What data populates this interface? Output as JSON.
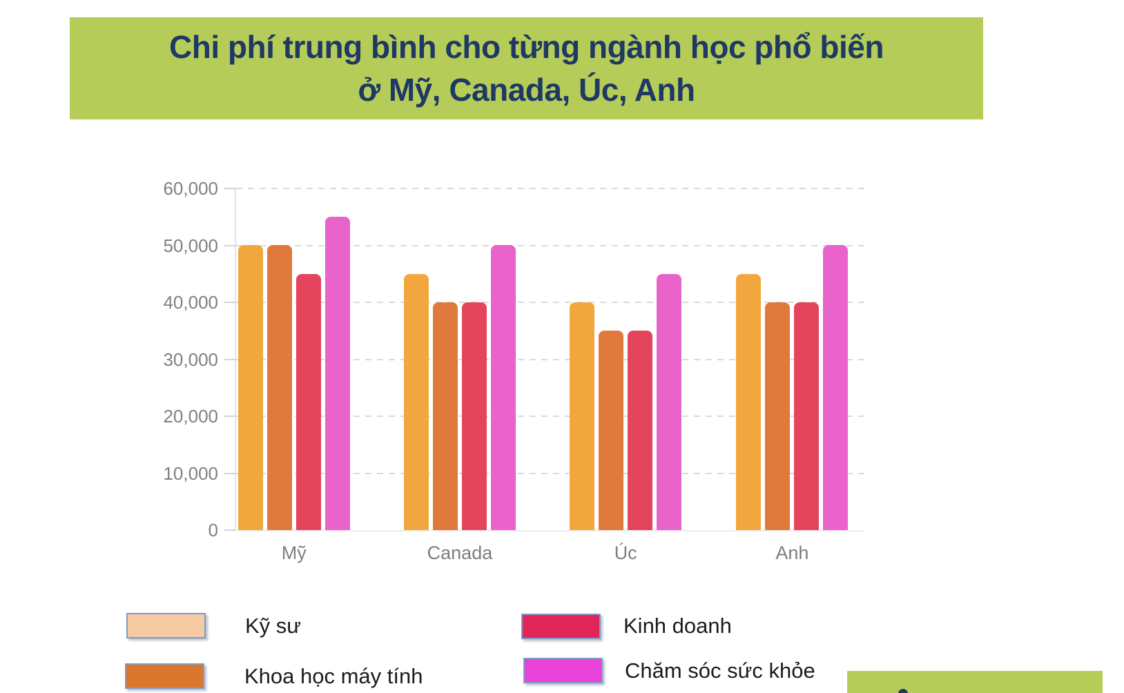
{
  "title_banner": {
    "line1": "Chi phí trung bình cho từng ngành học phổ biến",
    "line2": "ở Mỹ, Canada, Úc, Anh",
    "bg_color": "#b5cd58",
    "text_color": "#1f3864"
  },
  "chart_data": {
    "type": "bar",
    "title": "Chi phí trung bình cho từng ngành học phổ biến ở Mỹ, Canada, Úc, Anh",
    "categories": [
      "Mỹ",
      "Canada",
      "Úc",
      "Anh"
    ],
    "series": [
      {
        "name": "Kỹ sư",
        "values": [
          50000,
          45000,
          40000,
          45000
        ],
        "bar_color": "#f1a73d",
        "legend_color": "#f6caa2"
      },
      {
        "name": "Khoa học máy tính",
        "values": [
          50000,
          40000,
          35000,
          40000
        ],
        "bar_color": "#e0793c",
        "legend_color": "#d9772f"
      },
      {
        "name": "Kinh doanh",
        "values": [
          45000,
          40000,
          35000,
          40000
        ],
        "bar_color": "#e4455c",
        "legend_color": "#e22557"
      },
      {
        "name": "Chăm sóc sức khỏe",
        "values": [
          55000,
          50000,
          45000,
          50000
        ],
        "bar_color": "#ea63cb",
        "legend_color": "#e842d9"
      }
    ],
    "ylim": [
      0,
      60000
    ],
    "ytick_step": 10000,
    "ytick_labels": [
      "0",
      "10,000",
      "20,000",
      "30,000",
      "40,000",
      "50,000",
      "60,000"
    ],
    "grid": "horizontal-dashed",
    "legend_position": "bottom-two-columns"
  },
  "bottom_right_box": {
    "bg_color": "#b5cd58"
  }
}
